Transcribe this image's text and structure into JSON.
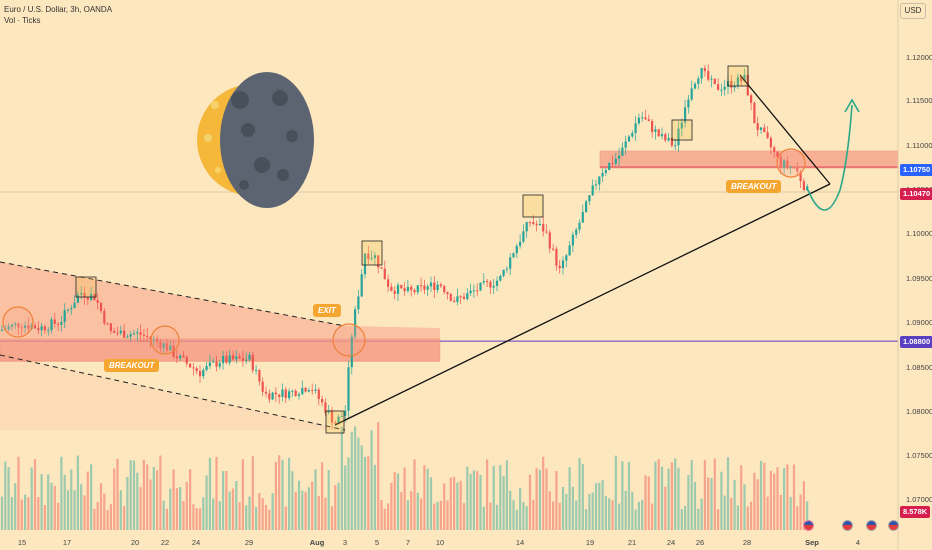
{
  "header": {
    "symbol": "Euro / U.S. Dollar, 3h, OANDA",
    "volume_label": "Vol · Ticks",
    "currency": "USD"
  },
  "chart_data": {
    "type": "candlestick",
    "y_ticks": [
      "1.12000",
      "1.11500",
      "1.11000",
      "1.10500",
      "1.10000",
      "1.09500",
      "1.09000",
      "1.08500",
      "1.08000",
      "1.07500",
      "1.07000"
    ],
    "x_ticks": [
      "15",
      "17",
      "20",
      "22",
      "24",
      "29",
      "Aug",
      "3",
      "5",
      "7",
      "10",
      "14",
      "19",
      "21",
      "24",
      "26",
      "28",
      "Sep",
      "4"
    ],
    "ylim": [
      1.0665,
      1.1205
    ],
    "price_labels": [
      {
        "text": "1.10750",
        "value": 1.1075,
        "color": "#2962ff"
      },
      {
        "text": "1.10470",
        "value": 1.1047,
        "color": "#d61f4e"
      },
      {
        "text": "1.08800",
        "value": 1.088,
        "color": "#5b3fc2"
      },
      {
        "text": "8.578K",
        "value": null,
        "color": "#d61f4e"
      }
    ],
    "annotations": [
      "EXIT",
      "BREAKOUT",
      "BREAKOUT"
    ],
    "horizontal_line": 1.088
  },
  "colors": {
    "up": "#26a69a",
    "down": "#ef5350",
    "zone": "#f7a48a",
    "background": "#fde7bf"
  }
}
